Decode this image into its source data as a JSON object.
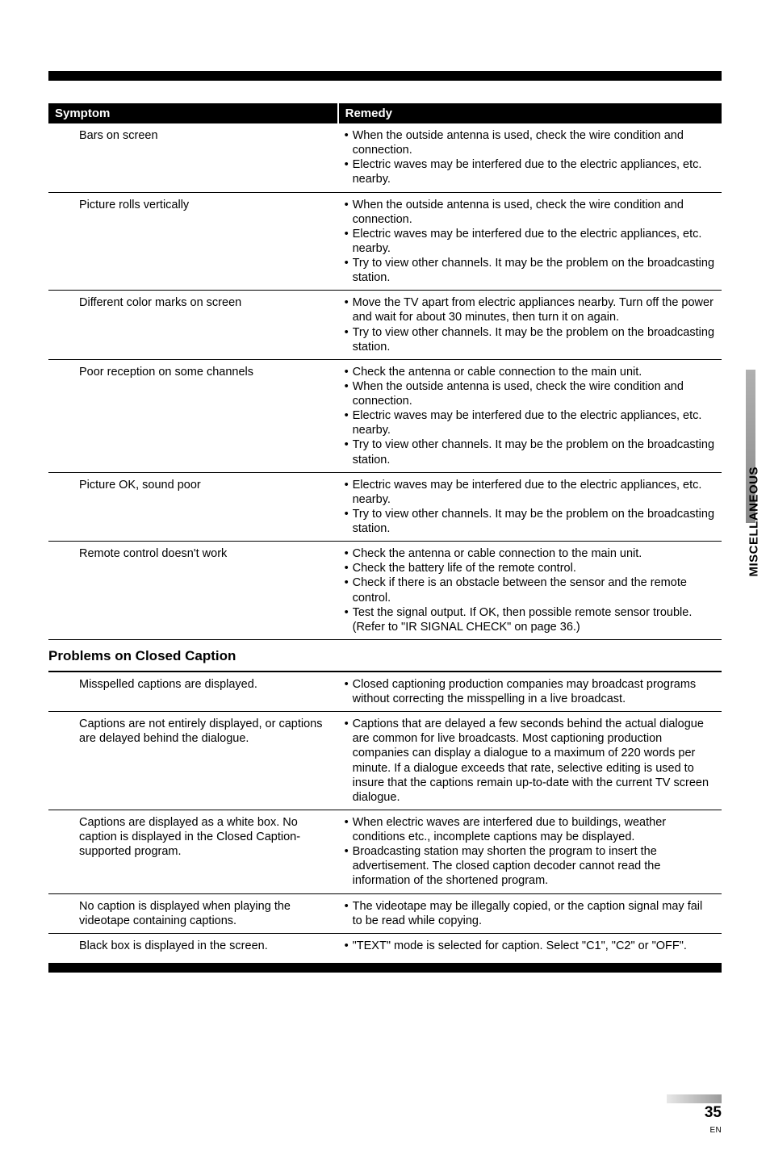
{
  "header": {
    "symptom": "Symptom",
    "remedy": "Remedy"
  },
  "table1": [
    {
      "symptom": "Bars on screen",
      "remedy": [
        "When the outside antenna is used, check the wire condition and connection.",
        "Electric waves may be interfered due to the electric appliances, etc. nearby."
      ]
    },
    {
      "symptom": "Picture rolls vertically",
      "remedy": [
        "When the outside antenna is used, check the wire condition and connection.",
        "Electric waves may be interfered due to the electric appliances, etc. nearby.",
        "Try to view other channels. It may be the problem on the broadcasting station."
      ]
    },
    {
      "symptom": "Different color marks on screen",
      "remedy": [
        "Move the TV apart from electric appliances nearby. Turn off the power and wait for about 30 minutes, then turn it on again.",
        "Try to view other channels. It may be the problem on the broadcasting station."
      ]
    },
    {
      "symptom": "Poor reception on some channels",
      "remedy": [
        "Check the antenna or cable connection to the main unit.",
        "When the outside antenna is used, check the wire condition and connection.",
        "Electric waves may be interfered due to the electric appliances, etc. nearby.",
        "Try to view other channels. It may be the problem on the broadcasting station."
      ]
    },
    {
      "symptom": "Picture OK, sound poor",
      "remedy": [
        "Electric waves may be interfered due to the electric appliances, etc. nearby.",
        "Try to view other channels. It may be the problem on the broadcasting station."
      ]
    },
    {
      "symptom": "Remote control doesn't work",
      "remedy": [
        "Check the antenna or cable connection to the main unit.",
        "Check the battery life of the remote control.",
        "Check if there is an obstacle between the sensor and the remote control.",
        "Test the signal output. If OK, then possible remote sensor trouble. (Refer to \"IR SIGNAL CHECK\" on page 36.)"
      ]
    }
  ],
  "sectionHeading": "Problems on Closed Caption",
  "table2": [
    {
      "symptom": "Misspelled captions are displayed.",
      "remedy": [
        "Closed captioning production companies may broadcast programs without correcting the misspelling in a live broadcast."
      ]
    },
    {
      "symptom": "Captions are not entirely displayed, or captions are delayed behind the dialogue.",
      "remedy": [
        "Captions that are delayed a few seconds behind the actual dialogue are common for live broadcasts. Most captioning production companies can display a dialogue to a maximum of 220 words per minute. If a dialogue exceeds that rate, selective editing is used to insure that the captions remain up-to-date with the current TV screen dialogue."
      ]
    },
    {
      "symptom": "Captions are displayed as a white box. No caption is displayed in the Closed Caption-supported program.",
      "remedy": [
        "When electric waves are interfered due to buildings, weather conditions etc., incomplete captions may be displayed.",
        "Broadcasting station may shorten the program to insert the advertisement. The closed caption decoder cannot read the information of the shortened program."
      ]
    },
    {
      "symptom": "No caption is displayed when playing the videotape containing captions.",
      "remedy": [
        "The videotape may be illegally copied, or the caption signal may fail to be read while copying."
      ]
    },
    {
      "symptom": "Black box is displayed in the screen.",
      "remedy": [
        "\"TEXT\" mode is selected for caption. Select \"C1\", \"C2\" or \"OFF\"."
      ]
    }
  ],
  "sideTab": "MISCELLANEOUS",
  "pageNum": "35",
  "pageEN": "EN"
}
